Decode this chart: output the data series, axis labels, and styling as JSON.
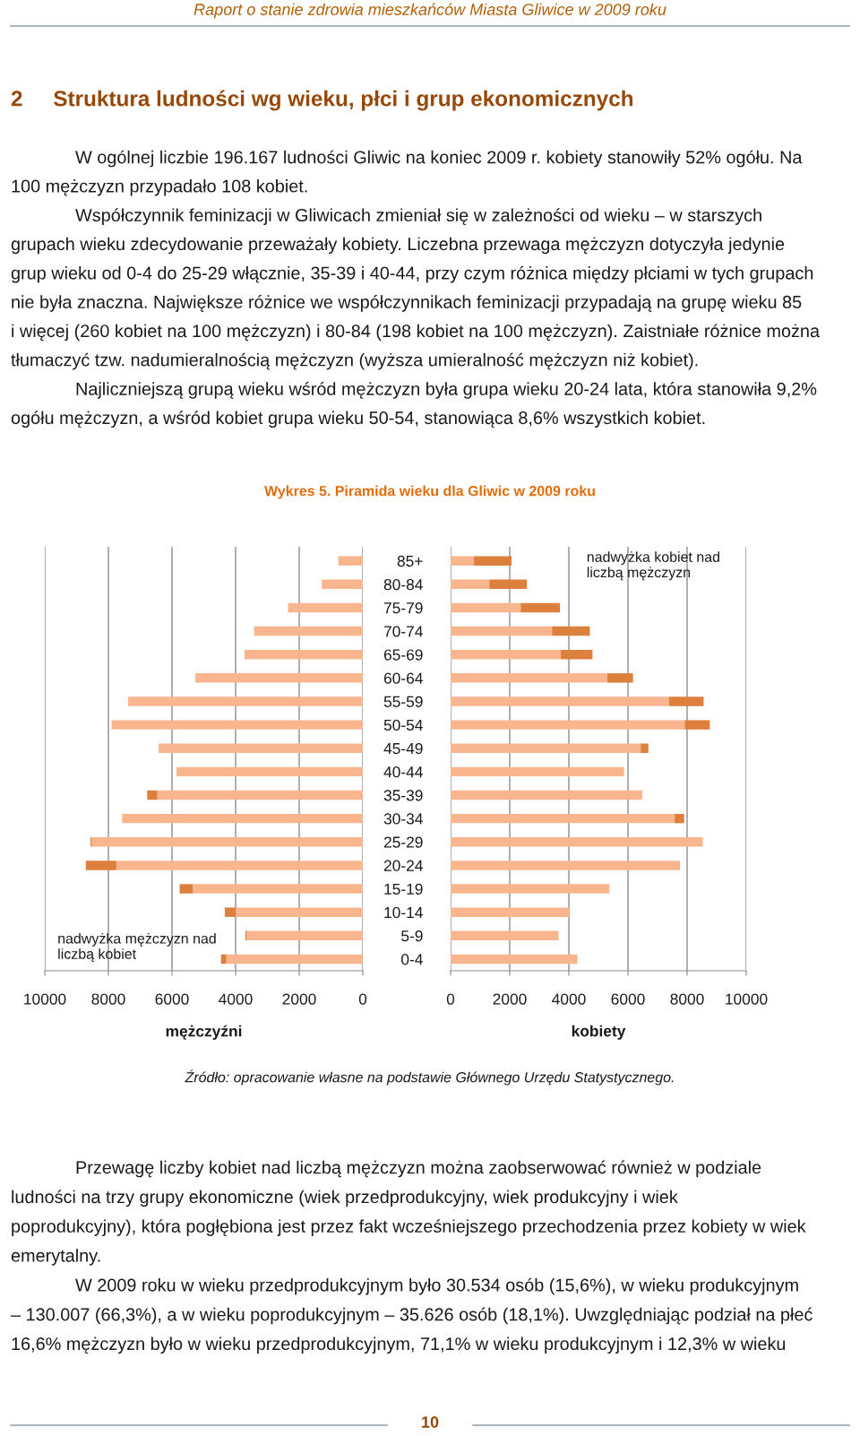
{
  "chart_data": [
    {
      "type": "other",
      "annotations": [
        "Raport o stanie zdrowia mieszkańców Miasta Gliwice w 2009 roku",
        "2     Struktura ludności wg wieku, płci i grup ekonomicznych",
        "W ogólnej liczbie 196.167 ludności Gliwic na koniec 2009 r. kobiety stanowiły 52% ogółu. Na",
        "100 mężczyzn przypadało 108 kobiet.",
        "Współczynnik feminizacji w Gliwicach zmieniał się w zależności od wieku – w starszych",
        "grupach wieku zdecydowanie przeważały kobiety. Liczebna przewaga mężczyzn dotyczyła jedynie",
        "grup wieku od 0-4 do 25-29 włącznie, 35-39 i 40-44, przy czym różnica między płciami w tych grupach",
        "nie była znaczna. Największe różnice we współczynnikach feminizacji przypadają na grupę wieku 85",
        "i więcej (260 kobiet na 100 mężczyzn) i 80-84 (198 kobiet na 100 mężczyzn). Zaistniałe różnice można",
        "tłumaczyć tzw. nadumieralnością mężczyzn (wyższa umieralność mężczyzn niż kobiet).",
        "Najliczniejszą grupą wieku wśród mężczyzn była grupa wieku 20-24 lata, która stanowiła 9,2%",
        "ogółu mężczyzn, a wśród kobiet grupa wieku 50-54, stanowiąca 8,6% wszystkich kobiet."
      ]
    },
    {
      "type": "bar",
      "orientation": "horizontal",
      "stacked": true,
      "title": "Wykres 5. Piramida wieku dla Gliwic w 2009 roku",
      "xlabel": "mężczyźni",
      "categories": [
        null,
        null,
        null,
        null,
        null,
        null,
        null,
        null,
        null,
        null,
        null,
        null,
        null,
        null,
        null,
        null,
        null,
        null
      ],
      "series": [
        {
          "color": "#f9b68e",
          "values": [
            770,
            1290,
            2350,
            3420,
            3720,
            5270,
            7380,
            7900,
            6420,
            5860,
            6460,
            7570,
            8520,
            7750,
            5350,
            4000,
            3650,
            4290
          ]
        },
        {
          "color": "#dd7f3d",
          "values": [
            null,
            null,
            null,
            null,
            null,
            null,
            null,
            null,
            null,
            null,
            320,
            null,
            40,
            960,
            410,
            340,
            40,
            170
          ]
        }
      ],
      "xlim": [
        10000,
        0
      ],
      "xticks": [
        0,
        2000,
        4000,
        6000,
        8000,
        10000
      ],
      "grid": "x",
      "annotations": [
        "nadwyżka mężczyzn nad\nliczbą kobiet"
      ]
    },
    {
      "type": "bar",
      "orientation": "horizontal",
      "stacked": true,
      "xlabel": "kobiety",
      "categories": [
        "85+",
        "80-84",
        "75-79",
        "70-74",
        "65-69",
        "60-64",
        "55-59",
        "50-54",
        "45-49",
        "40-44",
        "35-39",
        "30-34",
        "25-29",
        "20-24",
        "15-19",
        "10-14",
        "5-9",
        "0-4"
      ],
      "series": [
        {
          "color": "#f9b68e",
          "values": [
            790,
            1310,
            2370,
            3430,
            3730,
            5300,
            7390,
            7920,
            6430,
            5870,
            6480,
            7580,
            8530,
            7760,
            5370,
            4020,
            3650,
            4290
          ]
        },
        {
          "color": "#dd7f3d",
          "values": [
            1270,
            1270,
            1330,
            1280,
            1070,
            870,
            1170,
            850,
            260,
            null,
            null,
            320,
            null,
            null,
            null,
            null,
            null,
            null
          ]
        }
      ],
      "xlim": [
        0,
        10000
      ],
      "xticks": [
        0,
        2000,
        4000,
        6000,
        8000,
        10000
      ],
      "grid": "x",
      "annotations": [
        "nadwyżka kobiet nad\nliczbą mężczyzn"
      ]
    },
    {
      "type": "other",
      "annotations": [
        "Źródło: opracowanie własne na podstawie Głównego Urzędu Statystycznego.",
        "Przewagę liczby kobiet nad liczbą mężczyzn można zaobserwować również w podziale",
        "ludności na trzy grupy ekonomiczne (wiek przedprodukcyjny, wiek produkcyjny i wiek",
        "poprodukcyjny), która pogłębiona jest przez fakt wcześniejszego przechodzenia przez kobiety w wiek",
        "emerytalny.",
        "W 2009 roku w wieku przedprodukcyjnym było 30.534 osób (15,6%), w wieku produkcyjnym",
        "– 130.007 (66,3%), a w wieku poprodukcyjnym – 35.626 osób (18,1%). Uwzględniając podział na płeć",
        "16,6% mężczyzn było w wieku przedprodukcyjnym, 71,1% w wieku produkcyjnym i 12,3% w wieku",
        "10"
      ]
    }
  ]
}
